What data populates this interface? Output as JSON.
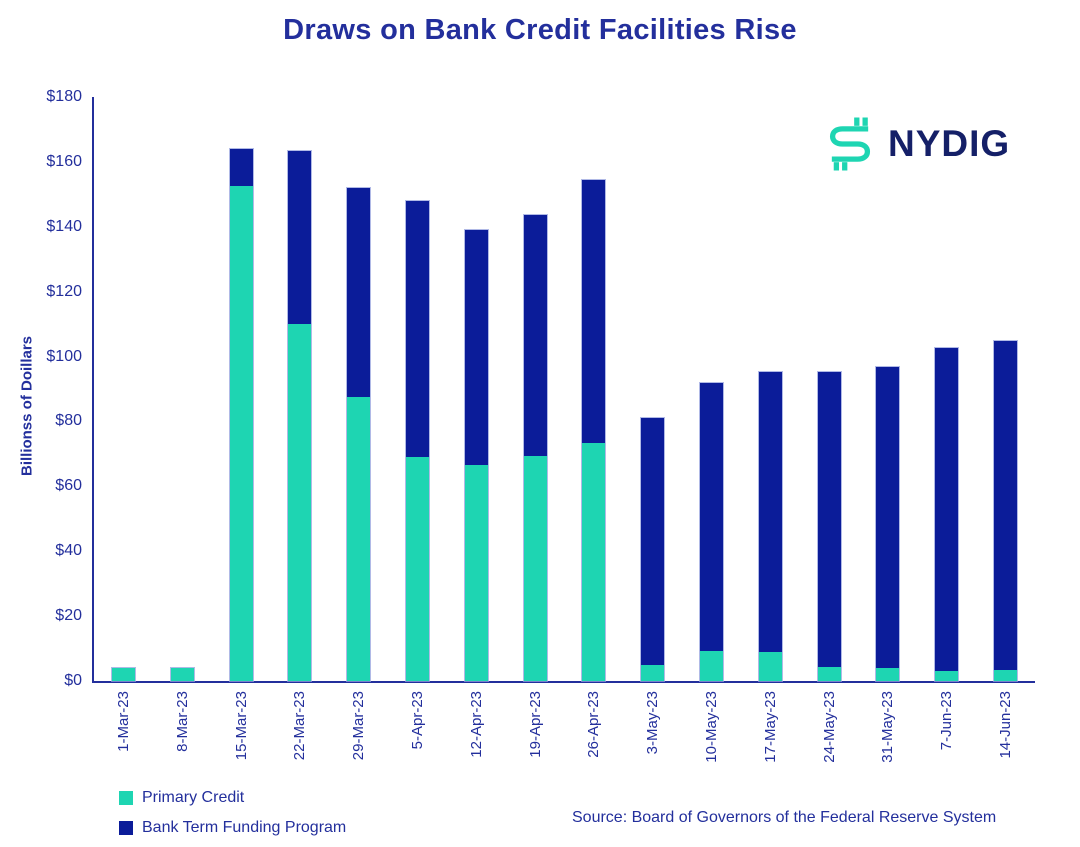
{
  "title": "Draws on Bank Credit Facilities Rise",
  "logo": {
    "text": "NYDIG"
  },
  "source": "Source: Board of Governors of the Federal Reserve System",
  "colors": {
    "teal": "#1ed5b2",
    "navy_bar": "#0b1c99",
    "text_navy": "#232f9c",
    "logo_text_navy": "#152068"
  },
  "chart_data": {
    "type": "bar",
    "stacked": true,
    "title": "Draws on Bank Credit Facilities Rise",
    "xlabel": "",
    "ylabel": "Billionss of Doillars",
    "ylim": [
      0,
      180
    ],
    "ytick_step": 20,
    "ytick_labels": [
      "$0",
      "$20",
      "$40",
      "$60",
      "$80",
      "$100",
      "$120",
      "$140",
      "$160",
      "$180"
    ],
    "grid": false,
    "legend_position": "bottom-left",
    "categories": [
      "1-Mar-23",
      "8-Mar-23",
      "15-Mar-23",
      "22-Mar-23",
      "29-Mar-23",
      "5-Apr-23",
      "12-Apr-23",
      "19-Apr-23",
      "26-Apr-23",
      "3-May-23",
      "10-May-23",
      "17-May-23",
      "24-May-23",
      "31-May-23",
      "7-Jun-23",
      "14-Jun-23"
    ],
    "series": [
      {
        "name": "Primary Credit",
        "color": "#1ed5b2",
        "values": [
          4,
          4,
          152.5,
          110,
          87.5,
          69,
          66.5,
          69.5,
          73.5,
          5,
          9.3,
          8.9,
          4.2,
          3.9,
          3.1,
          3.4
        ]
      },
      {
        "name": "Bank Term Funding Program",
        "color": "#0b1c99",
        "values": [
          0,
          0,
          11.5,
          53.5,
          64.5,
          79,
          72.5,
          74,
          81,
          76,
          82.5,
          86.3,
          91.2,
          93,
          99.5,
          101.4
        ]
      }
    ],
    "totals": [
      4,
      4,
      164,
      163.5,
      152,
      148,
      139,
      143.5,
      154.5,
      81,
      91.8,
      95.2,
      95.4,
      96.9,
      102.6,
      104.8
    ]
  }
}
